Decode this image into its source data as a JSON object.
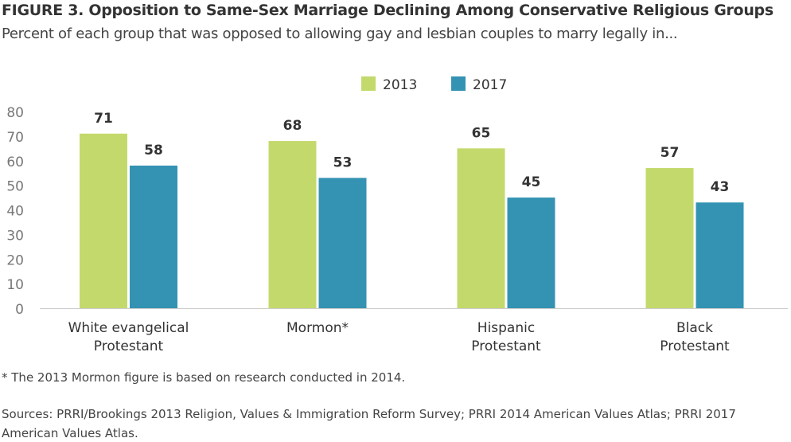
{
  "title": "FIGURE 3. Opposition to Same-Sex Marriage Declining Among Conservative Religious Groups",
  "subtitle": "Percent of each group that was opposed to allowing gay and lesbian couples to marry legally in...",
  "note": "* The 2013 Mormon figure is based on research conducted in 2014.",
  "source": "Sources: PRRI/Brookings 2013 Religion, Values & Immigration Reform Survey; PRRI 2014 American Values Atlas; PRRI 2017 American Values Atlas.",
  "chart_data": {
    "type": "bar",
    "categories": [
      [
        "White evangelical",
        "Protestant"
      ],
      [
        "Mormon*"
      ],
      [
        "Hispanic",
        "Protestant"
      ],
      [
        "Black",
        "Protestant"
      ]
    ],
    "series": [
      {
        "name": "2013",
        "color": "#c4d96c",
        "values": [
          71,
          68,
          65,
          57
        ]
      },
      {
        "name": "2017",
        "color": "#3493b3",
        "values": [
          58,
          53,
          45,
          43
        ]
      }
    ],
    "ylim": [
      0,
      80
    ],
    "yticks": [
      0,
      10,
      20,
      30,
      40,
      50,
      60,
      70,
      80
    ],
    "grid": false,
    "legend": "top-center",
    "data_labels": true
  }
}
